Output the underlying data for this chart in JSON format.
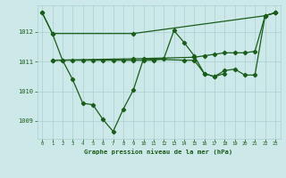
{
  "title": "Graphe pression niveau de la mer (hPa)",
  "bg_color": "#cce8e8",
  "grid_color": "#aacfcf",
  "line_color": "#1a5c1a",
  "text_color": "#1a5c1a",
  "xlim": [
    -0.5,
    23.5
  ],
  "ylim": [
    1008.4,
    1012.9
  ],
  "yticks": [
    1009,
    1010,
    1011,
    1012
  ],
  "xticks": [
    0,
    1,
    2,
    3,
    4,
    5,
    6,
    7,
    8,
    9,
    10,
    11,
    12,
    13,
    14,
    15,
    16,
    17,
    18,
    19,
    20,
    21,
    22,
    23
  ],
  "s1_x": [
    0,
    1,
    9,
    22,
    23
  ],
  "s1_y": [
    1012.65,
    1011.95,
    1011.95,
    1012.55,
    1012.65
  ],
  "s2_x": [
    0,
    1,
    2,
    3,
    4,
    5,
    6,
    7,
    8,
    9,
    10,
    14,
    15,
    16,
    17,
    18
  ],
  "s2_y": [
    1012.65,
    1011.95,
    1011.05,
    1010.4,
    1009.6,
    1009.55,
    1009.05,
    1008.65,
    1009.4,
    1010.05,
    1011.1,
    1011.05,
    1011.05,
    1010.6,
    1010.5,
    1010.6
  ],
  "s3_x": [
    1,
    9,
    15,
    16,
    17,
    18,
    19,
    20,
    21,
    22,
    23
  ],
  "s3_y": [
    1011.05,
    1011.1,
    1011.15,
    1011.2,
    1011.25,
    1011.3,
    1011.3,
    1011.3,
    1011.35,
    1012.55,
    1012.65
  ],
  "s4_x": [
    1,
    2,
    3,
    4,
    5,
    6,
    7,
    8,
    9,
    10,
    11,
    12,
    13,
    14,
    15,
    16,
    17,
    18,
    19,
    20,
    21,
    22,
    23
  ],
  "s4_y": [
    1011.05,
    1011.05,
    1011.05,
    1011.05,
    1011.05,
    1011.05,
    1011.05,
    1011.05,
    1011.05,
    1011.05,
    1011.05,
    1011.1,
    1012.05,
    1011.65,
    1011.2,
    1010.6,
    1010.5,
    1010.7,
    1010.75,
    1010.55,
    1010.55,
    1012.55,
    1012.65
  ]
}
